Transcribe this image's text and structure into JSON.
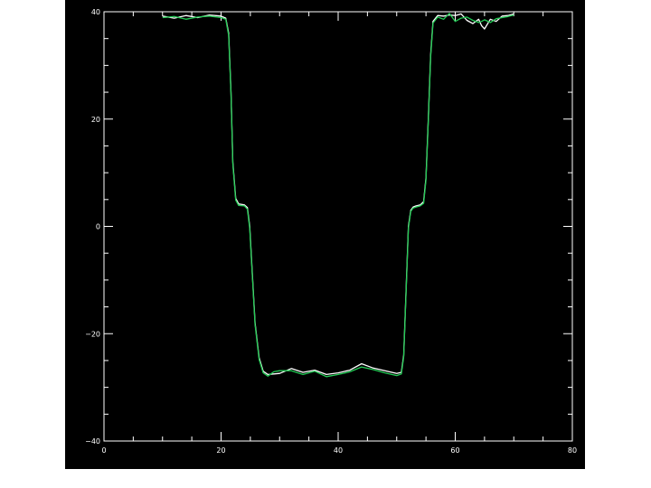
{
  "chart_data": {
    "type": "line",
    "title": "",
    "xlabel": "",
    "ylabel": "",
    "xlim": [
      0,
      80
    ],
    "ylim": [
      -40,
      40
    ],
    "x_ticks": [
      0,
      20,
      40,
      60,
      80
    ],
    "x_tick_labels": [
      "0",
      "20",
      "40",
      "60",
      "80"
    ],
    "y_ticks": [
      -40,
      -20,
      0,
      20,
      40
    ],
    "y_tick_labels": [
      "−40",
      "−20",
      "0",
      "20",
      "40"
    ],
    "grid": false,
    "background": "#000000",
    "axis_color": "#ffffff",
    "series": [
      {
        "color": "#ffffff",
        "x": [
          10,
          12,
          14,
          16,
          18,
          20,
          20.8,
          21.3,
          21.7,
          22.0,
          22.5,
          23,
          24,
          24.5,
          24.9,
          25.3,
          25.8,
          26.5,
          27.2,
          28,
          29,
          30,
          32,
          34,
          36,
          38,
          40,
          42,
          44,
          46,
          48,
          50,
          50.8,
          51.2,
          51.6,
          52.0,
          52.4,
          52.8,
          53.3,
          54,
          54.6,
          55.0,
          55.4,
          55.8,
          56.2,
          57,
          58,
          59,
          60,
          61,
          62,
          63,
          64,
          64.5,
          65,
          66,
          67,
          68,
          69,
          70
        ],
        "y": [
          39.2,
          38.8,
          39.3,
          38.9,
          39.4,
          39.2,
          38.8,
          36,
          25,
          12,
          5.2,
          4.2,
          4.0,
          3.5,
          0,
          -8,
          -18,
          -24.5,
          -27,
          -27.6,
          -27.5,
          -27.4,
          -26.5,
          -27.2,
          -26.8,
          -27.6,
          -27.3,
          -26.8,
          -25.6,
          -26.4,
          -26.9,
          -27.4,
          -27.2,
          -24,
          -12,
          0,
          3.0,
          3.6,
          3.8,
          4.0,
          4.6,
          9,
          20,
          32,
          38.2,
          39.3,
          39.2,
          39.4,
          39.3,
          39.6,
          38.4,
          37.8,
          38.6,
          37.4,
          36.8,
          38.6,
          38.2,
          39.2,
          39.3,
          39.6
        ]
      },
      {
        "color": "#22cc55",
        "x": [
          10,
          12,
          14,
          16,
          18,
          20,
          20.8,
          21.3,
          21.7,
          22.0,
          22.5,
          23,
          24,
          24.5,
          24.9,
          25.3,
          25.8,
          26.5,
          27.2,
          28,
          29,
          30,
          32,
          34,
          36,
          38,
          40,
          42,
          44,
          46,
          48,
          50,
          50.8,
          51.2,
          51.6,
          52.0,
          52.4,
          52.8,
          53.3,
          54,
          54.6,
          55.0,
          55.4,
          55.8,
          56.2,
          57,
          58,
          59,
          60,
          61,
          62,
          63,
          64,
          64.5,
          65,
          66,
          67,
          68,
          69,
          70
        ],
        "y": [
          38.9,
          39.1,
          38.6,
          39.0,
          39.2,
          38.9,
          38.6,
          35.6,
          24.6,
          11.6,
          4.9,
          3.9,
          3.8,
          3.2,
          -0.4,
          -8.4,
          -18.3,
          -24.8,
          -27.3,
          -27.9,
          -27.1,
          -26.9,
          -26.9,
          -27.6,
          -27.0,
          -28.0,
          -27.6,
          -27.1,
          -26.2,
          -26.7,
          -27.3,
          -27.8,
          -27.5,
          -24.3,
          -12.4,
          -0.3,
          2.8,
          3.4,
          3.6,
          3.8,
          4.3,
          8.6,
          19.6,
          31.6,
          37.9,
          39.0,
          38.6,
          39.7,
          38.2,
          38.8,
          39.0,
          38.4,
          38.0,
          38.2,
          38.5,
          38.0,
          38.7,
          38.9,
          39.1,
          39.4
        ]
      }
    ]
  }
}
